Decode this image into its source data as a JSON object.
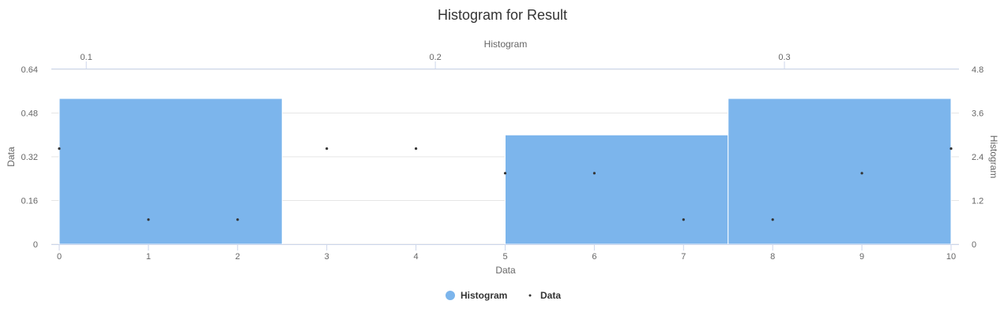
{
  "chart_data": {
    "type": "bar",
    "title": "Histogram for Result",
    "x_axis": {
      "label": "Data",
      "min": 0,
      "max": 10,
      "ticks": [
        "0",
        "1",
        "2",
        "3",
        "4",
        "5",
        "6",
        "7",
        "8",
        "9",
        "10"
      ]
    },
    "x2_axis": {
      "label": "Histogram",
      "min": 0.09,
      "max": 0.35,
      "ticks": [
        {
          "value": 0.1,
          "label": "0.1"
        },
        {
          "value": 0.2,
          "label": "0.2"
        },
        {
          "value": 0.3,
          "label": "0.3"
        }
      ]
    },
    "y_axis": {
      "label": "Data",
      "ylim": [
        0,
        0.64
      ],
      "ticks": [
        {
          "value": 0,
          "label": "0"
        },
        {
          "value": 0.16,
          "label": "0.16"
        },
        {
          "value": 0.32,
          "label": "0.32"
        },
        {
          "value": 0.48,
          "label": "0.48"
        },
        {
          "value": 0.64,
          "label": "0.64"
        }
      ]
    },
    "y2_axis": {
      "label": "Histogram",
      "ylim": [
        0,
        4.8
      ],
      "ticks": [
        {
          "value": 0,
          "label": "0"
        },
        {
          "value": 1.2,
          "label": "1.2"
        },
        {
          "value": 2.4,
          "label": "2.4"
        },
        {
          "value": 3.6,
          "label": "3.6"
        },
        {
          "value": 4.8,
          "label": "4.8"
        }
      ]
    },
    "grid": true,
    "legend_position": "bottom-center",
    "series": [
      {
        "name": "Histogram",
        "type": "histogram",
        "color": "#7cb5ec",
        "bins": [
          {
            "x0": 0,
            "x1": 2.5,
            "count": 4
          },
          {
            "x0": 2.5,
            "x1": 5,
            "count": 0
          },
          {
            "x0": 5,
            "x1": 7.5,
            "count": 3
          },
          {
            "x0": 7.5,
            "x1": 10,
            "count": 4
          }
        ]
      },
      {
        "name": "Data",
        "type": "scatter",
        "color": "#333333",
        "points": [
          {
            "x": 0,
            "y": 0.35
          },
          {
            "x": 1,
            "y": 0.09
          },
          {
            "x": 2,
            "y": 0.09
          },
          {
            "x": 3,
            "y": 0.35
          },
          {
            "x": 4,
            "y": 0.35
          },
          {
            "x": 5,
            "y": 0.26
          },
          {
            "x": 6,
            "y": 0.26
          },
          {
            "x": 7,
            "y": 0.09
          },
          {
            "x": 8,
            "y": 0.09
          },
          {
            "x": 9,
            "y": 0.26
          },
          {
            "x": 10,
            "y": 0.35
          }
        ]
      }
    ]
  }
}
